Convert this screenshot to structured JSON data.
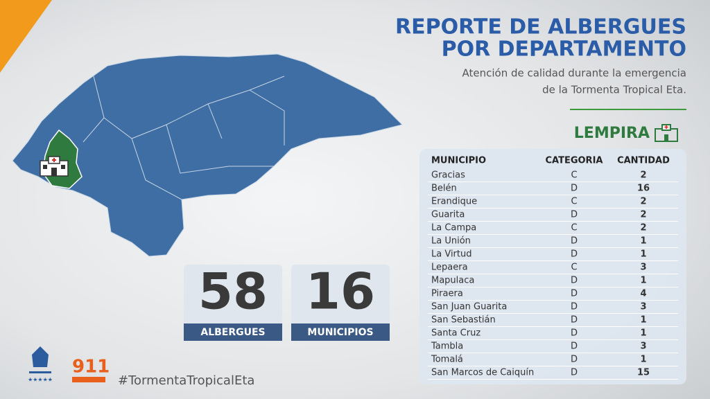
{
  "header": {
    "title_lines": [
      "REPORTE DE ALBERGUES",
      "POR DEPARTAMENTO"
    ],
    "subtitle_lines": [
      "Atención de calidad durante la emergencia",
      "de la Tormenta Tropical Eta."
    ],
    "department": "LEMPIRA"
  },
  "table": {
    "columns": [
      "MUNICIPIO",
      "CATEGORIA",
      "CANTIDAD"
    ],
    "rows": [
      [
        "Gracias",
        "C",
        2
      ],
      [
        "Belén",
        "D",
        16
      ],
      [
        "Erandique",
        "C",
        2
      ],
      [
        "Guarita",
        "D",
        2
      ],
      [
        "La Campa",
        "C",
        2
      ],
      [
        "La Unión",
        "D",
        1
      ],
      [
        "La Virtud",
        "D",
        1
      ],
      [
        "Lepaera",
        "C",
        3
      ],
      [
        "Mapulaca",
        "D",
        1
      ],
      [
        "Piraera",
        "D",
        4
      ],
      [
        "San Juan Guarita",
        "D",
        3
      ],
      [
        "San Sebastián",
        "D",
        1
      ],
      [
        "Santa Cruz",
        "D",
        1
      ],
      [
        "Tambla",
        "D",
        3
      ],
      [
        "Tomalá",
        "D",
        1
      ],
      [
        "San Marcos de Caiquín",
        "D",
        15
      ]
    ]
  },
  "stats": [
    {
      "value": 58,
      "label": "ALBERGUES"
    },
    {
      "value": 16,
      "label": "MUNICIPIOS"
    }
  ],
  "footer": {
    "hashtag": "#TormentaTropicalEta",
    "logo_911": "911"
  }
}
